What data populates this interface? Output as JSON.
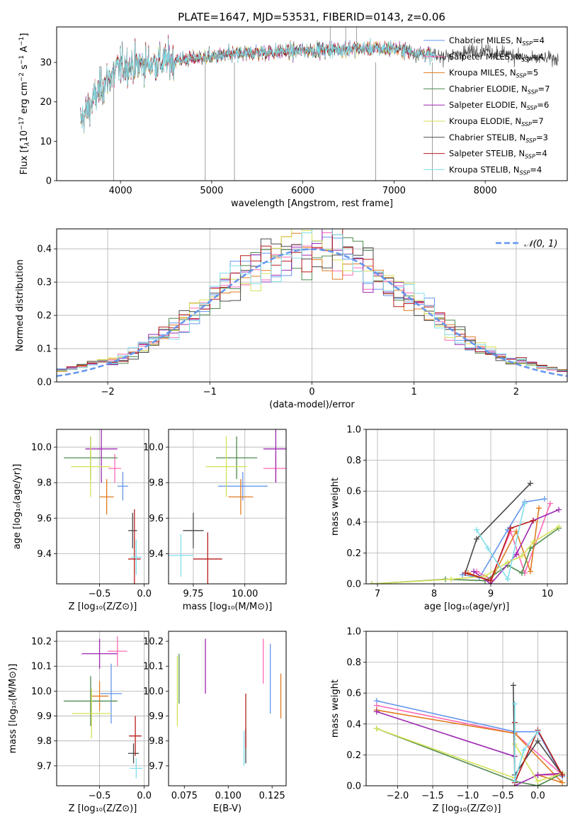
{
  "title": "PLATE=1647, MJD=53531, FIBERID=0143, z=0.06",
  "models": [
    {
      "name": "Chabrier MILES, N",
      "nssp": "=4",
      "color": "#6495ed"
    },
    {
      "name": "Salpeter MILES, N",
      "nssp": "=4",
      "color": "#ff69b4"
    },
    {
      "name": "Kroupa MILES, N",
      "nssp": "=5",
      "color": "#e07b20"
    },
    {
      "name": "Chabrier ELODIE, N",
      "nssp": "=7",
      "color": "#4f8a4f"
    },
    {
      "name": "Salpeter ELODIE, N",
      "nssp": "=6",
      "color": "#9c27b0"
    },
    {
      "name": "Kroupa ELODIE, N",
      "nssp": "=7",
      "color": "#d4e157"
    },
    {
      "name": "Chabrier STELIB, N",
      "nssp": "=3",
      "color": "#4a4a4a"
    },
    {
      "name": "Salpeter STELIB, N",
      "nssp": "=4",
      "color": "#b71c1c"
    },
    {
      "name": "Kroupa STELIB, N",
      "nssp": "=4",
      "color": "#80deea"
    }
  ],
  "nssp_sub": "SSP",
  "chart_data": [
    {
      "id": "spectrum",
      "type": "line",
      "xlabel": "wavelength [Angstrom, rest frame]",
      "ylabel_parts": [
        "Flux [f",
        "λ",
        "10",
        "−17",
        " erg cm",
        "−2",
        " s",
        "−1",
        " A",
        "−1",
        "]"
      ],
      "xlim": [
        3300,
        8900
      ],
      "ylim": [
        0,
        39
      ],
      "xticks": [
        4000,
        5000,
        6000,
        7000,
        8000
      ],
      "yticks": [
        0,
        10,
        20,
        30
      ],
      "grid": false,
      "legend": "top-right",
      "profile": {
        "x": [
          3560,
          3800,
          4000,
          4400,
          5000,
          5500,
          6000,
          6500,
          7000,
          7500,
          8000,
          8500,
          8800
        ],
        "y": [
          15,
          24,
          29,
          30,
          31.5,
          32.5,
          33,
          33.5,
          33.5,
          31.5,
          33,
          31,
          31
        ]
      }
    },
    {
      "id": "residuals",
      "type": "step-histogram",
      "xlabel": "(data-model)/error",
      "ylabel": "Normed distribution",
      "xlim": [
        -2.5,
        2.5
      ],
      "ylim": [
        0,
        0.46
      ],
      "xticks": [
        -2,
        -1,
        0,
        1,
        2
      ],
      "yticks": [
        0.0,
        0.1,
        0.2,
        0.3,
        0.4
      ],
      "grid": true,
      "legend": "top-right",
      "reference": {
        "label": "𝒩(0, 1)",
        "mean": 0,
        "sigma": 1,
        "color": "#6495ed"
      },
      "bin_width": 0.1
    },
    {
      "id": "age-vs-z",
      "type": "errorbar",
      "xlabel": "Z [log₁₀(Z/Z⊙)]",
      "ylabel": "age  [log₁₀(age/yr)]",
      "xlim": [
        -0.98,
        0.05
      ],
      "ylim": [
        9.23,
        10.1
      ],
      "xticks": [
        -0.5,
        0.0
      ],
      "xticklabels": [
        "−0.5",
        "0.0"
      ],
      "yticks": [
        9.4,
        9.6,
        9.8,
        10.0
      ],
      "grid": true,
      "points": [
        {
          "x": -0.24,
          "xerr": 0.06,
          "y": 9.78,
          "yerr": 0.08,
          "color": "#6495ed"
        },
        {
          "x": -0.33,
          "xerr": 0.07,
          "y": 9.88,
          "yerr": 0.08,
          "color": "#ff69b4"
        },
        {
          "x": -0.42,
          "xerr": 0.08,
          "y": 9.72,
          "yerr": 0.1,
          "color": "#e07b20"
        },
        {
          "x": -0.6,
          "xerr": 0.3,
          "y": 9.94,
          "yerr": 0.12,
          "color": "#4f8a4f"
        },
        {
          "x": -0.48,
          "xerr": 0.18,
          "y": 9.99,
          "yerr": 0.19,
          "color": "#9c27b0"
        },
        {
          "x": -0.6,
          "xerr": 0.22,
          "y": 9.89,
          "yerr": 0.17,
          "color": "#d4e157"
        },
        {
          "x": -0.13,
          "xerr": 0.05,
          "y": 9.53,
          "yerr": 0.1,
          "color": "#4a4a4a"
        },
        {
          "x": -0.11,
          "xerr": 0.07,
          "y": 9.37,
          "yerr": 0.28,
          "color": "#b71c1c"
        },
        {
          "x": -0.09,
          "xerr": 0.06,
          "y": 9.38,
          "yerr": 0.1,
          "color": "#80deea"
        }
      ]
    },
    {
      "id": "age-vs-mass",
      "type": "errorbar",
      "xlabel": "mass [log₁₀(M/M⊙)]",
      "ylabel": "",
      "xlim": [
        9.63,
        10.2
      ],
      "ylim": [
        9.23,
        10.1
      ],
      "xticks": [
        9.75,
        10.0
      ],
      "xticklabels": [
        "9.75",
        "10.00"
      ],
      "yticks": [
        9.4,
        9.6,
        9.8,
        10.0
      ],
      "grid": true,
      "points": [
        {
          "x": 9.99,
          "xerr": 0.12,
          "y": 9.78,
          "yerr": 0.08,
          "color": "#6495ed"
        },
        {
          "x": 10.15,
          "xerr": 0.06,
          "y": 9.88,
          "yerr": 0.08,
          "color": "#ff69b4"
        },
        {
          "x": 9.98,
          "xerr": 0.06,
          "y": 9.72,
          "yerr": 0.1,
          "color": "#e07b20"
        },
        {
          "x": 9.96,
          "xerr": 0.1,
          "y": 9.94,
          "yerr": 0.12,
          "color": "#4f8a4f"
        },
        {
          "x": 10.15,
          "xerr": 0.06,
          "y": 9.99,
          "yerr": 0.19,
          "color": "#9c27b0"
        },
        {
          "x": 9.91,
          "xerr": 0.1,
          "y": 9.89,
          "yerr": 0.17,
          "color": "#d4e157"
        },
        {
          "x": 9.75,
          "xerr": 0.05,
          "y": 9.53,
          "yerr": 0.1,
          "color": "#4a4a4a"
        },
        {
          "x": 9.82,
          "xerr": 0.07,
          "y": 9.37,
          "yerr": 0.15,
          "color": "#b71c1c"
        },
        {
          "x": 9.69,
          "xerr": 0.06,
          "y": 9.39,
          "yerr": 0.12,
          "color": "#80deea"
        }
      ]
    },
    {
      "id": "weight-vs-age",
      "type": "line",
      "xlabel": "age  [log₁₀(age/yr)]",
      "ylabel": "mass weight",
      "xlim": [
        6.8,
        10.35
      ],
      "ylim": [
        0,
        1
      ],
      "xticks": [
        7,
        8,
        9,
        10
      ],
      "yticks": [
        0.0,
        0.2,
        0.4,
        0.6,
        0.8,
        1.0
      ],
      "grid": true,
      "series": [
        {
          "color": "#6495ed",
          "x": [
            8.5,
            8.8,
            9.3,
            9.6,
            9.95
          ],
          "y": [
            0.06,
            0.04,
            0.35,
            0.53,
            0.55
          ]
        },
        {
          "color": "#ff69b4",
          "x": [
            8.75,
            9.0,
            9.35,
            9.6,
            10.05
          ],
          "y": [
            0.08,
            0.03,
            0.34,
            0.07,
            0.52
          ]
        },
        {
          "color": "#e07b20",
          "x": [
            8.6,
            9.0,
            9.45,
            9.7,
            9.85
          ],
          "y": [
            0.07,
            0.02,
            0.34,
            0.08,
            0.49
          ]
        },
        {
          "color": "#4f8a4f",
          "x": [
            6.9,
            8.2,
            8.9,
            9.3,
            9.55,
            9.7,
            10.2
          ],
          "y": [
            0.0,
            0.03,
            0.02,
            0.12,
            0.07,
            0.23,
            0.36
          ]
        },
        {
          "color": "#9c27b0",
          "x": [
            8.7,
            9.0,
            9.45,
            9.75,
            10.2
          ],
          "y": [
            0.08,
            0.0,
            0.19,
            0.41,
            0.48
          ]
        },
        {
          "color": "#d4e157",
          "x": [
            6.9,
            8.3,
            8.9,
            9.3,
            9.55,
            9.75,
            10.2
          ],
          "y": [
            0.0,
            0.03,
            0.05,
            0.14,
            0.18,
            0.27,
            0.37
          ]
        },
        {
          "color": "#4a4a4a",
          "x": [
            8.55,
            8.75,
            9.7
          ],
          "y": [
            0.07,
            0.29,
            0.65
          ]
        },
        {
          "color": "#b71c1c",
          "x": [
            8.55,
            9.0,
            9.35,
            9.75
          ],
          "y": [
            0.07,
            0.02,
            0.36,
            0.41
          ]
        },
        {
          "color": "#80deea",
          "x": [
            8.75,
            8.95,
            9.3,
            9.6
          ],
          "y": [
            0.35,
            0.23,
            0.03,
            0.52
          ]
        }
      ]
    },
    {
      "id": "mass-vs-z",
      "type": "errorbar",
      "xlabel": "Z [log₁₀(Z/Z⊙)]",
      "ylabel": "mass [log₁₀(M/M⊙)]",
      "xlim": [
        -0.98,
        0.05
      ],
      "ylim": [
        9.62,
        10.24
      ],
      "xticks": [
        -0.5,
        0.0
      ],
      "xticklabels": [
        "−0.5",
        "0.0"
      ],
      "yticks": [
        9.7,
        9.8,
        9.9,
        10.0,
        10.1,
        10.2
      ],
      "grid": true,
      "points": [
        {
          "x": -0.37,
          "xerr": 0.12,
          "y": 9.99,
          "yerr": 0.12,
          "color": "#6495ed"
        },
        {
          "x": -0.3,
          "xerr": 0.11,
          "y": 10.16,
          "yerr": 0.06,
          "color": "#ff69b4"
        },
        {
          "x": -0.5,
          "xerr": 0.1,
          "y": 9.98,
          "yerr": 0.06,
          "color": "#e07b20"
        },
        {
          "x": -0.6,
          "xerr": 0.3,
          "y": 9.96,
          "yerr": 0.1,
          "color": "#4f8a4f"
        },
        {
          "x": -0.5,
          "xerr": 0.2,
          "y": 10.15,
          "yerr": 0.06,
          "color": "#9c27b0"
        },
        {
          "x": -0.59,
          "xerr": 0.22,
          "y": 9.91,
          "yerr": 0.1,
          "color": "#d4e157"
        },
        {
          "x": -0.12,
          "xerr": 0.06,
          "y": 9.75,
          "yerr": 0.04,
          "color": "#4a4a4a"
        },
        {
          "x": -0.1,
          "xerr": 0.07,
          "y": 9.82,
          "yerr": 0.08,
          "color": "#b71c1c"
        },
        {
          "x": -0.09,
          "xerr": 0.07,
          "y": 9.69,
          "yerr": 0.04,
          "color": "#80deea"
        }
      ]
    },
    {
      "id": "mass-vs-ebv",
      "type": "errorbar",
      "xlabel": "E(B-V)",
      "ylabel": "",
      "xlim": [
        0.066,
        0.133
      ],
      "ylim": [
        9.62,
        10.24
      ],
      "xticks": [
        0.075,
        0.1,
        0.125
      ],
      "xticklabels": [
        "0.075",
        "0.100",
        "0.125"
      ],
      "yticks": [
        9.7,
        9.8,
        9.9,
        10.0,
        10.1,
        10.2
      ],
      "grid": false,
      "points": [
        {
          "x": 0.124,
          "xerr": 0,
          "y": 10.05,
          "yerr": 0.14,
          "color": "#6495ed"
        },
        {
          "x": 0.12,
          "xerr": 0,
          "y": 10.12,
          "yerr": 0.09,
          "color": "#ff69b4"
        },
        {
          "x": 0.13,
          "xerr": 0,
          "y": 9.98,
          "yerr": 0.09,
          "color": "#e07b20"
        },
        {
          "x": 0.072,
          "xerr": 0,
          "y": 10.05,
          "yerr": 0.1,
          "color": "#4f8a4f"
        },
        {
          "x": 0.087,
          "xerr": 0,
          "y": 10.1,
          "yerr": 0.11,
          "color": "#9c27b0"
        },
        {
          "x": 0.071,
          "xerr": 0,
          "y": 10.0,
          "yerr": 0.14,
          "color": "#d4e157"
        },
        {
          "x": 0.11,
          "xerr": 0,
          "y": 9.78,
          "yerr": 0.07,
          "color": "#4a4a4a"
        },
        {
          "x": 0.11,
          "xerr": 0,
          "y": 9.88,
          "yerr": 0.11,
          "color": "#b71c1c"
        },
        {
          "x": 0.109,
          "xerr": 0,
          "y": 9.77,
          "yerr": 0.07,
          "color": "#80deea"
        }
      ]
    },
    {
      "id": "weight-vs-z",
      "type": "line",
      "xlabel": "Z [log₁₀(Z/Z⊙)]",
      "ylabel": "mass weight",
      "xlim": [
        -2.45,
        0.42
      ],
      "ylim": [
        0,
        1
      ],
      "xticks": [
        -2.0,
        -1.5,
        -1.0,
        -0.5,
        0.0
      ],
      "xticklabels": [
        "−2.0",
        "−1.5",
        "−1.0",
        "−0.5",
        "0.0"
      ],
      "yticks": [
        0.0,
        0.2,
        0.4,
        0.6,
        0.8,
        1.0
      ],
      "grid": true,
      "series": [
        {
          "color": "#6495ed",
          "x": [
            -2.3,
            -0.33,
            0.0,
            0.35
          ],
          "y": [
            0.55,
            0.35,
            0.35,
            0.06
          ]
        },
        {
          "color": "#ff69b4",
          "x": [
            -2.3,
            -0.33,
            0.35,
            0.0
          ],
          "y": [
            0.52,
            0.34,
            0.07,
            0.07
          ]
        },
        {
          "color": "#e07b20",
          "x": [
            -2.3,
            -0.33,
            0.35,
            0.0,
            0.35
          ],
          "y": [
            0.49,
            0.34,
            0.02,
            0.07,
            0.08
          ]
        },
        {
          "color": "#4f8a4f",
          "x": [
            -2.3,
            -0.33,
            0.0,
            0.35
          ],
          "y": [
            0.37,
            0.03,
            0.0,
            0.08
          ]
        },
        {
          "color": "#9c27b0",
          "x": [
            -2.3,
            -0.33,
            -0.33,
            0.0,
            0.35
          ],
          "y": [
            0.48,
            0.19,
            0.0,
            0.07,
            0.08
          ]
        },
        {
          "color": "#d4e157",
          "x": [
            -2.3,
            -0.33,
            -0.33,
            0.0,
            0.35
          ],
          "y": [
            0.37,
            0.05,
            0.27,
            0.03,
            0.08
          ]
        },
        {
          "color": "#4a4a4a",
          "x": [
            -0.35,
            -0.33,
            0.0,
            0.35
          ],
          "y": [
            0.65,
            0.07,
            0.29,
            0.07
          ]
        },
        {
          "color": "#b71c1c",
          "x": [
            -0.33,
            -0.33,
            0.0,
            0.35
          ],
          "y": [
            0.41,
            0.02,
            0.36,
            0.07
          ]
        },
        {
          "color": "#80deea",
          "x": [
            -0.33,
            -0.33,
            -0.2,
            0.0
          ],
          "y": [
            0.53,
            0.03,
            0.23,
            0.35
          ]
        }
      ]
    }
  ]
}
